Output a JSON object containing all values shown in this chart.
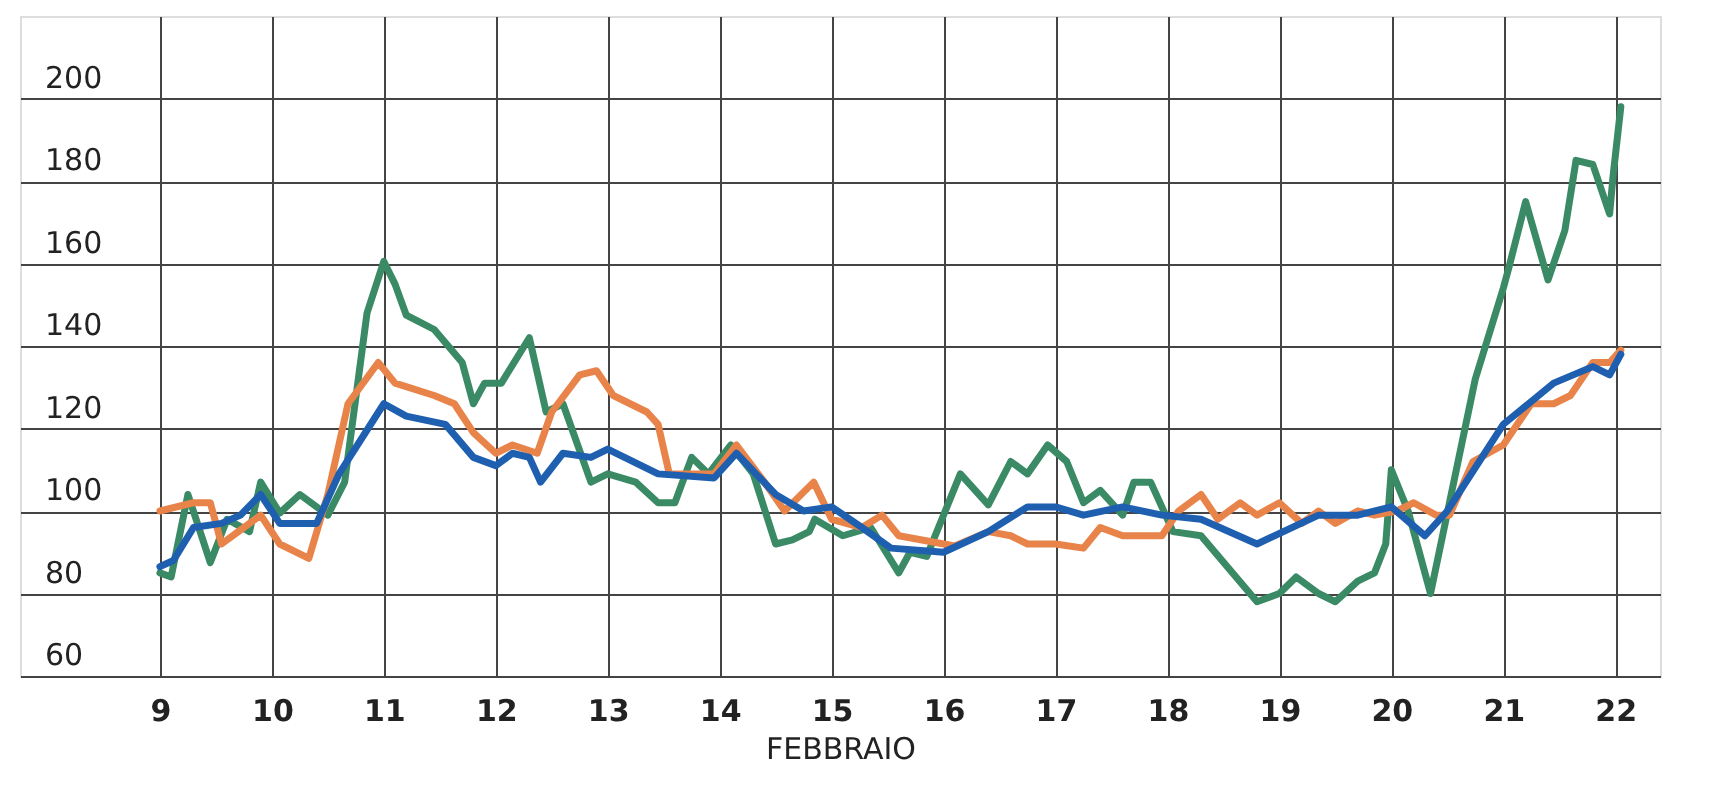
{
  "chart_data": {
    "type": "line",
    "xlabel": "FEBBRAIO",
    "xlim": [
      7.75,
      22.4
    ],
    "xticks": [
      9,
      10,
      11,
      12,
      13,
      14,
      15,
      16,
      17,
      18,
      19,
      20,
      21,
      22
    ],
    "ylim": [
      60,
      220
    ],
    "yticks": [
      60,
      80,
      100,
      120,
      140,
      160,
      180,
      200
    ],
    "grid": true,
    "line_style": "solid",
    "series": [
      {
        "color": "#3a8a66",
        "x": [
          9,
          9.1,
          9.25,
          9.45,
          9.6,
          9.8,
          9.9,
          10.07,
          10.25,
          10.5,
          10.65,
          10.85,
          11,
          11.1,
          11.2,
          11.45,
          11.7,
          11.8,
          11.9,
          12.05,
          12.3,
          12.45,
          12.6,
          12.85,
          13,
          13.25,
          13.45,
          13.6,
          13.75,
          13.9,
          14.1,
          14.3,
          14.5,
          14.65,
          14.8,
          14.85,
          15.1,
          15.35,
          15.6,
          15.7,
          15.85,
          16.15,
          16.4,
          16.6,
          16.75,
          16.93,
          17.1,
          17.25,
          17.4,
          17.6,
          17.7,
          17.85,
          18.05,
          18.3,
          18.8,
          19,
          19.15,
          19.35,
          19.5,
          19.7,
          19.85,
          19.95,
          20,
          20.15,
          20.35,
          20.75,
          21,
          21.05,
          21.2,
          21.4,
          21.55,
          21.65,
          21.8,
          21.95,
          21.98,
          22.05
        ],
        "values": [
          85,
          84,
          104,
          87.5,
          98,
          95,
          107,
          99.5,
          104,
          99,
          107,
          148,
          160.5,
          155,
          147.5,
          144,
          136,
          126,
          131,
          131,
          142,
          124,
          126,
          107,
          109,
          107,
          102,
          102,
          113,
          109,
          116,
          109,
          92,
          93,
          95,
          98,
          94,
          96,
          85,
          90,
          89,
          109,
          101.5,
          112,
          109,
          116,
          112,
          102,
          105,
          99,
          107,
          107,
          95,
          94,
          78,
          80,
          84,
          80,
          78,
          83,
          85,
          92,
          110,
          100,
          80,
          132,
          154,
          159,
          175,
          156,
          168,
          185,
          184,
          172,
          181,
          198
        ]
      },
      {
        "color": "#e8844a",
        "x": [
          9,
          9.3,
          9.45,
          9.55,
          9.7,
          9.9,
          10.07,
          10.33,
          10.5,
          10.68,
          10.95,
          11.1,
          11.45,
          11.63,
          11.8,
          12,
          12.15,
          12.37,
          12.5,
          12.75,
          12.9,
          13.05,
          13.35,
          13.45,
          13.55,
          13.8,
          13.95,
          14.15,
          14.4,
          14.58,
          14.84,
          15,
          15.27,
          15.45,
          15.6,
          16.1,
          16.4,
          16.6,
          16.75,
          17,
          17.25,
          17.4,
          17.6,
          17.95,
          18.1,
          18.3,
          18.45,
          18.65,
          18.8,
          19,
          19.2,
          19.35,
          19.5,
          19.7,
          19.85,
          20.05,
          20.2,
          20.4,
          20.52,
          20.73,
          21,
          21.25,
          21.45,
          21.6,
          21.8,
          21.95,
          22.05
        ],
        "values": [
          100,
          102,
          102,
          92,
          95,
          99,
          92,
          88.5,
          104,
          126,
          136,
          131,
          128,
          126,
          119,
          114,
          116,
          114,
          124,
          133,
          134,
          128,
          124,
          121,
          109,
          109,
          109,
          116,
          107,
          100,
          107,
          98,
          96,
          99,
          94,
          91.5,
          95,
          94,
          92,
          92,
          91,
          96,
          94,
          94,
          100,
          104,
          98,
          102,
          99,
          102,
          97,
          100,
          97,
          100,
          99,
          100,
          102,
          99,
          99,
          112,
          116,
          126,
          126,
          128,
          136,
          136,
          139
        ]
      },
      {
        "color": "#1f5fb0",
        "x": [
          9,
          9.12,
          9.3,
          9.55,
          9.72,
          9.9,
          10.07,
          10.4,
          10.6,
          11,
          11.2,
          11.55,
          11.8,
          12,
          12.15,
          12.3,
          12.4,
          12.6,
          12.85,
          13,
          13.45,
          13.95,
          14.15,
          14.5,
          14.75,
          15,
          15.27,
          15.53,
          16,
          16.4,
          16.75,
          17,
          17.25,
          17.6,
          17.95,
          18.3,
          18.8,
          19.35,
          19.7,
          20,
          20.3,
          20.5,
          21,
          21.45,
          21.8,
          21.95,
          22.05
        ],
        "values": [
          86.5,
          88,
          96,
          97,
          99,
          104,
          97,
          97,
          109,
          126,
          123,
          121,
          113,
          111,
          114,
          113,
          107,
          114,
          113,
          115,
          109,
          108,
          114,
          104,
          100,
          101,
          96,
          91,
          90,
          95,
          101,
          101,
          99,
          101,
          99,
          98,
          92,
          99,
          99,
          101,
          94,
          100,
          121,
          131,
          135,
          133,
          138
        ]
      }
    ]
  }
}
